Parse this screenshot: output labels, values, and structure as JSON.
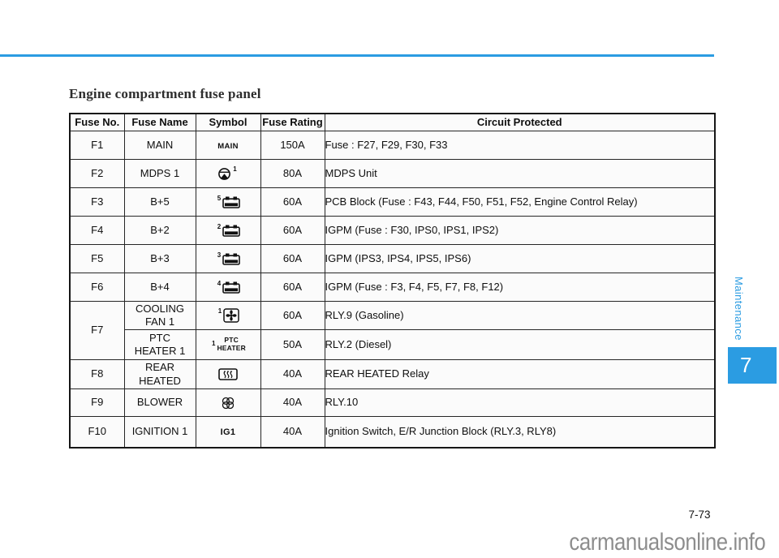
{
  "page": {
    "title": "Engine compartment fuse panel",
    "page_number": "7-73",
    "watermark": "carmanualsonline.info",
    "side_tab": {
      "label": "Maintenance",
      "chapter": "7"
    },
    "accent_color": "#2b9ce2"
  },
  "table": {
    "headers": [
      "Fuse No.",
      "Fuse Name",
      "Symbol",
      "Fuse Rating",
      "Circuit Protected"
    ],
    "rows": [
      {
        "no": "F1",
        "name": [
          "MAIN"
        ],
        "symbol": {
          "type": "text",
          "icon": "main-symbol",
          "text": "MAIN"
        },
        "rating": "150A",
        "circuit": "Fuse : F27, F29, F30, F33"
      },
      {
        "no": "F2",
        "name": [
          "MDPS 1"
        ],
        "symbol": {
          "type": "icon",
          "icon": "steering-wheel",
          "sup": "1",
          "sup_after": true
        },
        "rating": "80A",
        "circuit": "MDPS Unit"
      },
      {
        "no": "F3",
        "name": [
          "B+5"
        ],
        "symbol": {
          "type": "icon",
          "icon": "battery",
          "sup": "5"
        },
        "rating": "60A",
        "circuit": "PCB Block (Fuse : F43, F44, F50, F51, F52, Engine Control Relay)"
      },
      {
        "no": "F4",
        "name": [
          "B+2"
        ],
        "symbol": {
          "type": "icon",
          "icon": "battery",
          "sup": "2"
        },
        "rating": "60A",
        "circuit": "IGPM (Fuse : F30, IPS0, IPS1, IPS2)"
      },
      {
        "no": "F5",
        "name": [
          "B+3"
        ],
        "symbol": {
          "type": "icon",
          "icon": "battery",
          "sup": "3"
        },
        "rating": "60A",
        "circuit": "IGPM (IPS3, IPS4, IPS5, IPS6)"
      },
      {
        "no": "F6",
        "name": [
          "B+4"
        ],
        "symbol": {
          "type": "icon",
          "icon": "battery",
          "sup": "4"
        },
        "rating": "60A",
        "circuit": "IGPM (Fuse : F3, F4, F5, F7, F8, F12)"
      },
      {
        "no": "F7",
        "no_rowspan": 2,
        "name": [
          "COOLING",
          "FAN 1"
        ],
        "symbol": {
          "type": "icon",
          "icon": "cooling-fan",
          "sup": "1"
        },
        "rating": "60A",
        "circuit": "RLY.9 (Gasoline)"
      },
      {
        "merge_no": true,
        "name": [
          "PTC",
          "HEATER 1"
        ],
        "symbol": {
          "type": "stacked-text",
          "icon": "ptc-heater-symbol",
          "sup": "1",
          "lines": [
            "PTC",
            "HEATER"
          ]
        },
        "rating": "50A",
        "circuit": "RLY.2 (Diesel)"
      },
      {
        "no": "F8",
        "name": [
          "REAR",
          "HEATED"
        ],
        "symbol": {
          "type": "icon",
          "icon": "rear-defrost"
        },
        "rating": "40A",
        "circuit": "REAR HEATED Relay"
      },
      {
        "no": "F9",
        "name": [
          "BLOWER"
        ],
        "symbol": {
          "type": "icon",
          "icon": "blower-fan"
        },
        "rating": "40A",
        "circuit": "RLY.10"
      },
      {
        "no": "F10",
        "name": [
          "IGNITION 1"
        ],
        "symbol": {
          "type": "text",
          "icon": "ig1-symbol",
          "text": "IG1"
        },
        "rating": "40A",
        "circuit": "Ignition Switch, E/R Junction Block (RLY.3, RLY8)"
      }
    ]
  }
}
